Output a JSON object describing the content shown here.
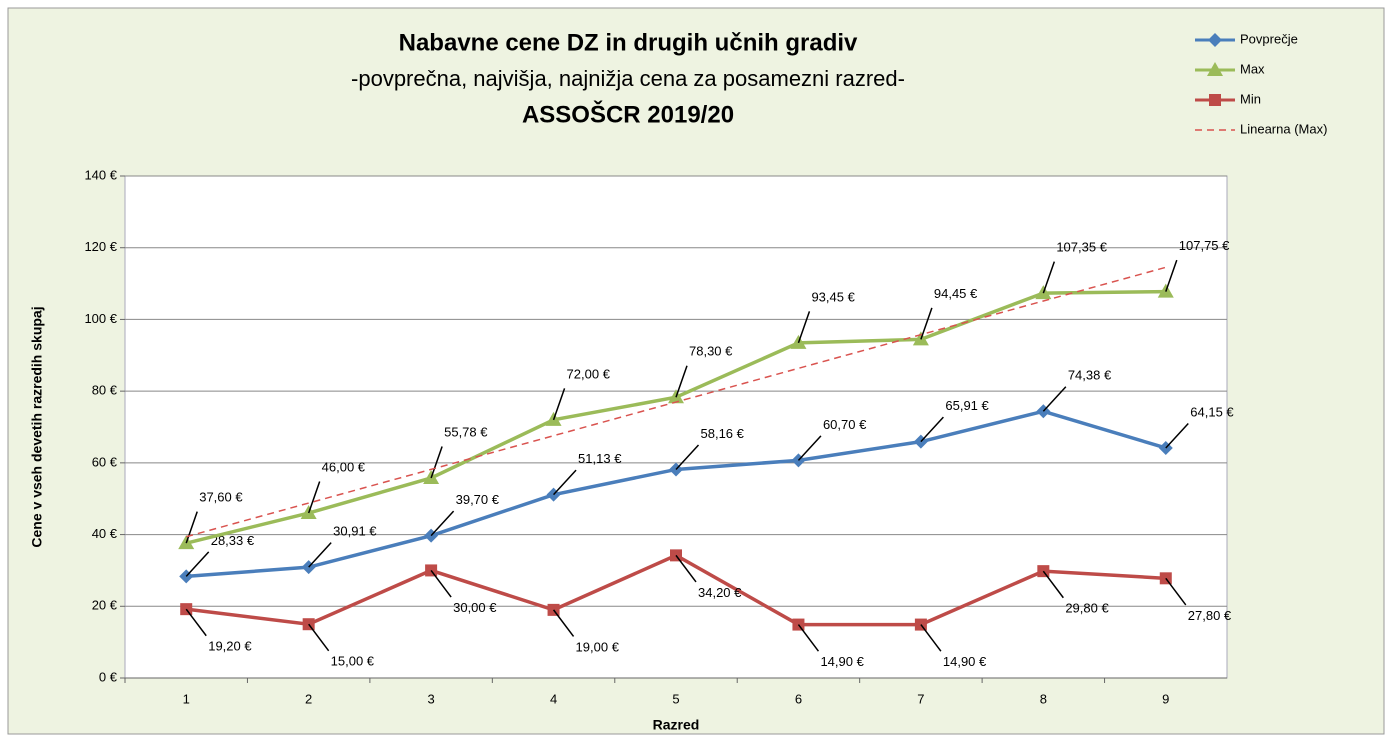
{
  "chart_data": {
    "type": "line",
    "title": "Nabavne cene DZ in drugih učnih gradiv",
    "subtitle": "-povprečna, najvišja, najnižja cena za posamezni razred-",
    "subtitle_2": "ASSOŠCR 2019/20",
    "x_label": "Razred",
    "y_label": "Cene v vseh devetih razredih skupaj",
    "categories": [
      "1",
      "2",
      "3",
      "4",
      "5",
      "6",
      "7",
      "8",
      "9"
    ],
    "series": [
      {
        "name": "Povprečje",
        "color": "#4a7ebb",
        "marker": "diamond",
        "values": [
          28.33,
          30.91,
          39.7,
          51.13,
          58.16,
          60.7,
          65.91,
          74.38,
          64.15
        ],
        "value_labels": [
          "28,33 €",
          "30,91 €",
          "39,70 €",
          "51,13 €",
          "58,16 €",
          "60,70 €",
          "65,91 €",
          "74,38 €",
          "64,15 €"
        ]
      },
      {
        "name": "Max",
        "color": "#9bbb59",
        "marker": "triangle",
        "values": [
          37.6,
          46.0,
          55.78,
          72.0,
          78.3,
          93.45,
          94.45,
          107.35,
          107.75
        ],
        "value_labels": [
          "37,60 €",
          "46,00 €",
          "55,78 €",
          "72,00 €",
          "78,30 €",
          "93,45 €",
          "94,45 €",
          "107,35 €",
          "107,75 €"
        ]
      },
      {
        "name": "Min",
        "color": "#be4b48",
        "marker": "square",
        "values": [
          19.2,
          15.0,
          30.0,
          19.0,
          34.2,
          14.9,
          14.9,
          29.8,
          27.8
        ],
        "value_labels": [
          "19,20 €",
          "15,00 €",
          "30,00 €",
          "19,00 €",
          "34,20 €",
          "14,90 €",
          "14,90 €",
          "29,80 €",
          "27,80 €"
        ]
      },
      {
        "name": "Linearna (Max)",
        "color": "#d9534f",
        "dashed": true,
        "values": [
          39.4,
          48.79,
          58.18,
          67.57,
          76.96,
          86.36,
          95.75,
          105.14,
          114.53
        ]
      }
    ],
    "ylim": [
      0,
      140
    ],
    "yticks": [
      {
        "value": 0,
        "label": "0 €"
      },
      {
        "value": 20,
        "label": "20 €"
      },
      {
        "value": 40,
        "label": "40 €"
      },
      {
        "value": 60,
        "label": "60 €"
      },
      {
        "value": 80,
        "label": "80 €"
      },
      {
        "value": 100,
        "label": "100 €"
      },
      {
        "value": 120,
        "label": "120 €"
      },
      {
        "value": 140,
        "label": "140 €"
      }
    ],
    "grid": true,
    "legend": "top-right"
  }
}
